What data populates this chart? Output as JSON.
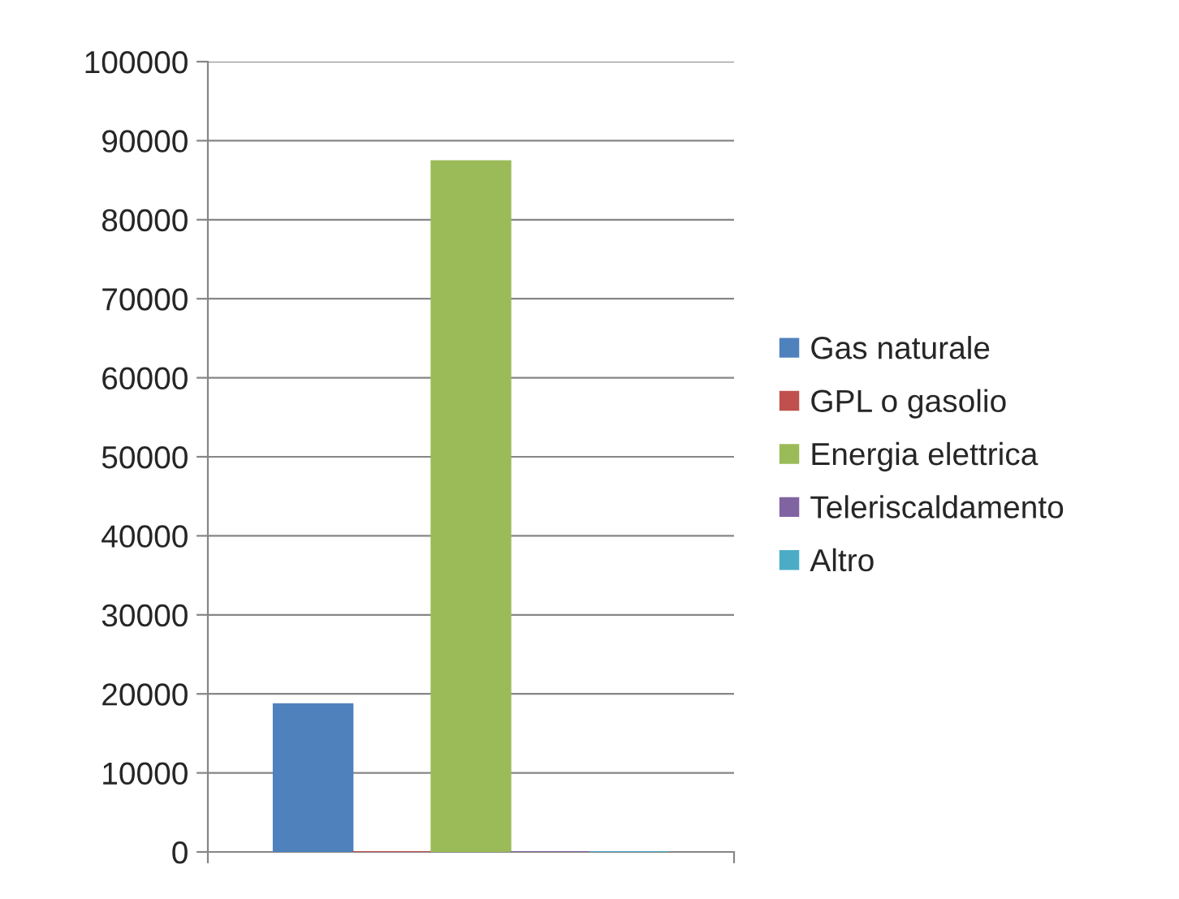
{
  "chart_data": {
    "type": "bar",
    "categories": [
      null
    ],
    "series": [
      {
        "name": "Gas naturale",
        "color": "#4f81bd",
        "values": [
          18700
        ]
      },
      {
        "name": "GPL o gasolio",
        "color": "#c0504d",
        "values": [
          0
        ]
      },
      {
        "name": "Energia elettrica",
        "color": "#9bbb59",
        "values": [
          87400
        ]
      },
      {
        "name": "Teleriscaldamento",
        "color": "#8064a2",
        "values": [
          0
        ]
      },
      {
        "name": "Altro",
        "color": "#4bacc6",
        "values": [
          0
        ]
      }
    ],
    "ylim": [
      0,
      100000
    ],
    "yticks": [
      0,
      10000,
      20000,
      30000,
      40000,
      50000,
      60000,
      70000,
      80000,
      90000,
      100000
    ],
    "grid": "y",
    "legend": "right"
  }
}
